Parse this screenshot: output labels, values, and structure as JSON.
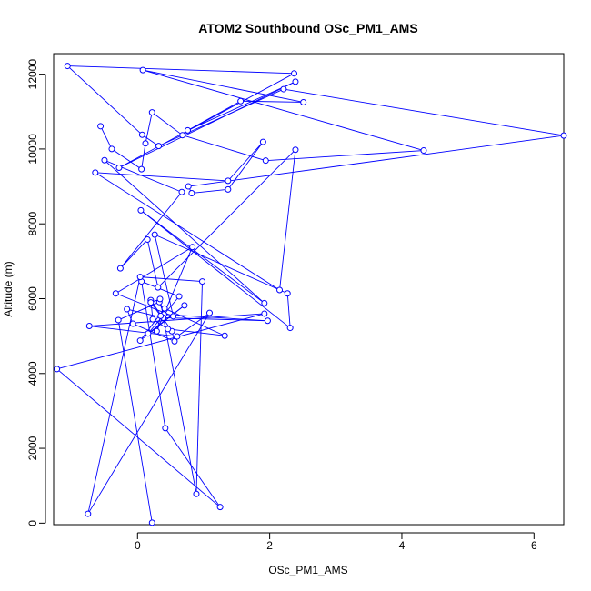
{
  "chart_data": {
    "type": "scatter",
    "title": "ATOM2 Southbound OSc_PM1_AMS",
    "xlabel": "OSc_PM1_AMS",
    "ylabel": "Altitude (m)",
    "xlim": [
      -1.27,
      6.45
    ],
    "ylim": [
      -40,
      12550
    ],
    "x_ticks": [
      0,
      2,
      4,
      6
    ],
    "y_ticks": [
      0,
      2000,
      4000,
      6000,
      8000,
      10000,
      12000
    ],
    "grid": false,
    "legend": "none",
    "connected": true,
    "color": "#0000ff",
    "series": [
      {
        "x": [
          0.22,
          -0.29,
          0.33,
          0.4,
          1.97,
          0.39,
          -0.16,
          -0.07,
          0.56,
          0.52,
          0.2,
          0.23,
          0.46,
          1.32,
          0.41,
          0.04,
          0.71,
          0.16,
          0.63,
          0.06,
          0.42,
          1.25,
          -1.22,
          1.92,
          -0.73,
          0.6,
          1.09,
          -0.75,
          0.04,
          0.98,
          0.89,
          0.34,
          0.2,
          0.35,
          0.29,
          0.83,
          -0.33,
          0.54,
          0.26,
          2.27,
          2.31,
          0.05,
          1.92,
          -0.5,
          0.67,
          -0.26,
          0.15,
          0.31,
          2.39,
          2.15,
          -0.64,
          1.37,
          1.9,
          1.37,
          0.82,
          0.77,
          6.45,
          2.21,
          0.32,
          0.07,
          -1.06,
          2.37,
          -0.28,
          2.39,
          0.76,
          1.56,
          2.51,
          0.08,
          4.33,
          1.94,
          0.68,
          0.22,
          0.12,
          0.06,
          -0.39,
          -0.56
        ]
      }
    ],
    "y": [
      12,
      5430,
      5910,
      5580,
      5410,
      5490,
      5720,
      5330,
      4860,
      5130,
      5960,
      5450,
      5190,
      5010,
      5740,
      4880,
      5820,
      5070,
      6060,
      6460,
      2540,
      430,
      4120,
      5600,
      5270,
      4990,
      5620,
      250,
      6580,
      6460,
      780,
      5990,
      5900,
      5540,
      5130,
      7380,
      6140,
      5530,
      7710,
      6140,
      5220,
      8360,
      5880,
      9700,
      8850,
      6810,
      7580,
      6300,
      9980,
      6230,
      9370,
      9150,
      10190,
      8920,
      8820,
      9000,
      10360,
      11600,
      10080,
      10380,
      12220,
      12020,
      9500,
      11800,
      10500,
      11280,
      11250,
      12110,
      9960,
      9690,
      10370,
      10980,
      10150,
      9460,
      10000,
      10610
    ]
  }
}
